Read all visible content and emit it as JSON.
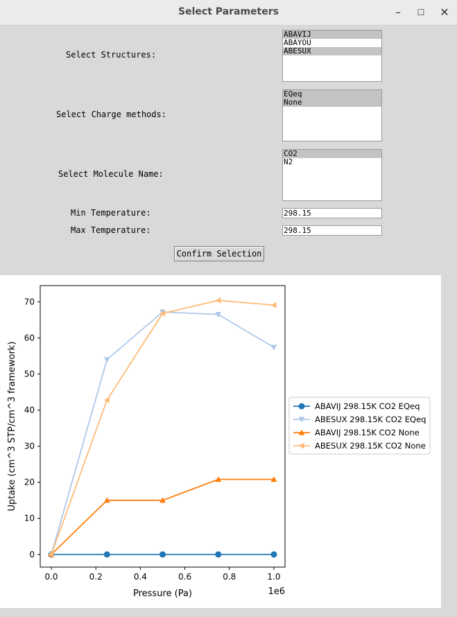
{
  "window": {
    "title": "Select Parameters",
    "controls": [
      "–",
      "☐",
      "✕"
    ]
  },
  "form": {
    "structures_label": "Select Structures:",
    "structures": [
      {
        "text": "ABAVIJ",
        "selected": true
      },
      {
        "text": "ABAYOU",
        "selected": false
      },
      {
        "text": "ABESUX",
        "selected": true
      }
    ],
    "charge_label": "Select Charge methods:",
    "charges": [
      {
        "text": "EQeq",
        "selected": true
      },
      {
        "text": "None",
        "selected": true
      }
    ],
    "molecule_label": "Select Molecule Name:",
    "molecules": [
      {
        "text": "CO2",
        "selected": true
      },
      {
        "text": "N2",
        "selected": false
      }
    ],
    "min_temp_label": "Min Temperature:",
    "min_temp_value": "298.15",
    "max_temp_label": "Max Temperature:",
    "max_temp_value": "298.15",
    "confirm_label": "Confirm Selection"
  },
  "chart_data": {
    "type": "line",
    "xlabel": "Pressure (Pa)",
    "ylabel": "Uptake (cm^3 STP/cm^3 framework)",
    "x_offset_label": "1e6",
    "xlim": [
      -0.05,
      1.05
    ],
    "ylim": [
      -3.5,
      74.5
    ],
    "xticks": [
      "0.0",
      "0.2",
      "0.4",
      "0.6",
      "0.8",
      "1.0"
    ],
    "xtick_values": [
      0.0,
      0.2,
      0.4,
      0.6,
      0.8,
      1.0
    ],
    "yticks": [
      "0",
      "10",
      "20",
      "30",
      "40",
      "50",
      "60",
      "70"
    ],
    "ytick_values": [
      0,
      10,
      20,
      30,
      40,
      50,
      60,
      70
    ],
    "x": [
      0.0,
      0.25,
      0.5,
      0.75,
      1.0
    ],
    "legend_position": "outside-right",
    "series": [
      {
        "name": "ABAVIJ 298.15K CO2 EQeq",
        "color": "#1f77b4",
        "marker": "circle",
        "values": [
          0,
          0,
          0,
          0,
          0
        ]
      },
      {
        "name": "ABESUX 298.15K CO2 EQeq",
        "color": "#aec7e8",
        "marker": "triangle-down",
        "values": [
          0,
          54,
          67.2,
          66.5,
          57.4
        ]
      },
      {
        "name": "ABAVIJ 298.15K CO2 None",
        "color": "#ff7f0e",
        "marker": "triangle-up",
        "values": [
          0,
          15,
          15,
          20.8,
          20.8
        ]
      },
      {
        "name": "ABESUX 298.15K CO2 None",
        "color": "#ffbb78",
        "marker": "triangle-left",
        "values": [
          0,
          42.8,
          66.8,
          70.4,
          69.1
        ]
      }
    ]
  }
}
